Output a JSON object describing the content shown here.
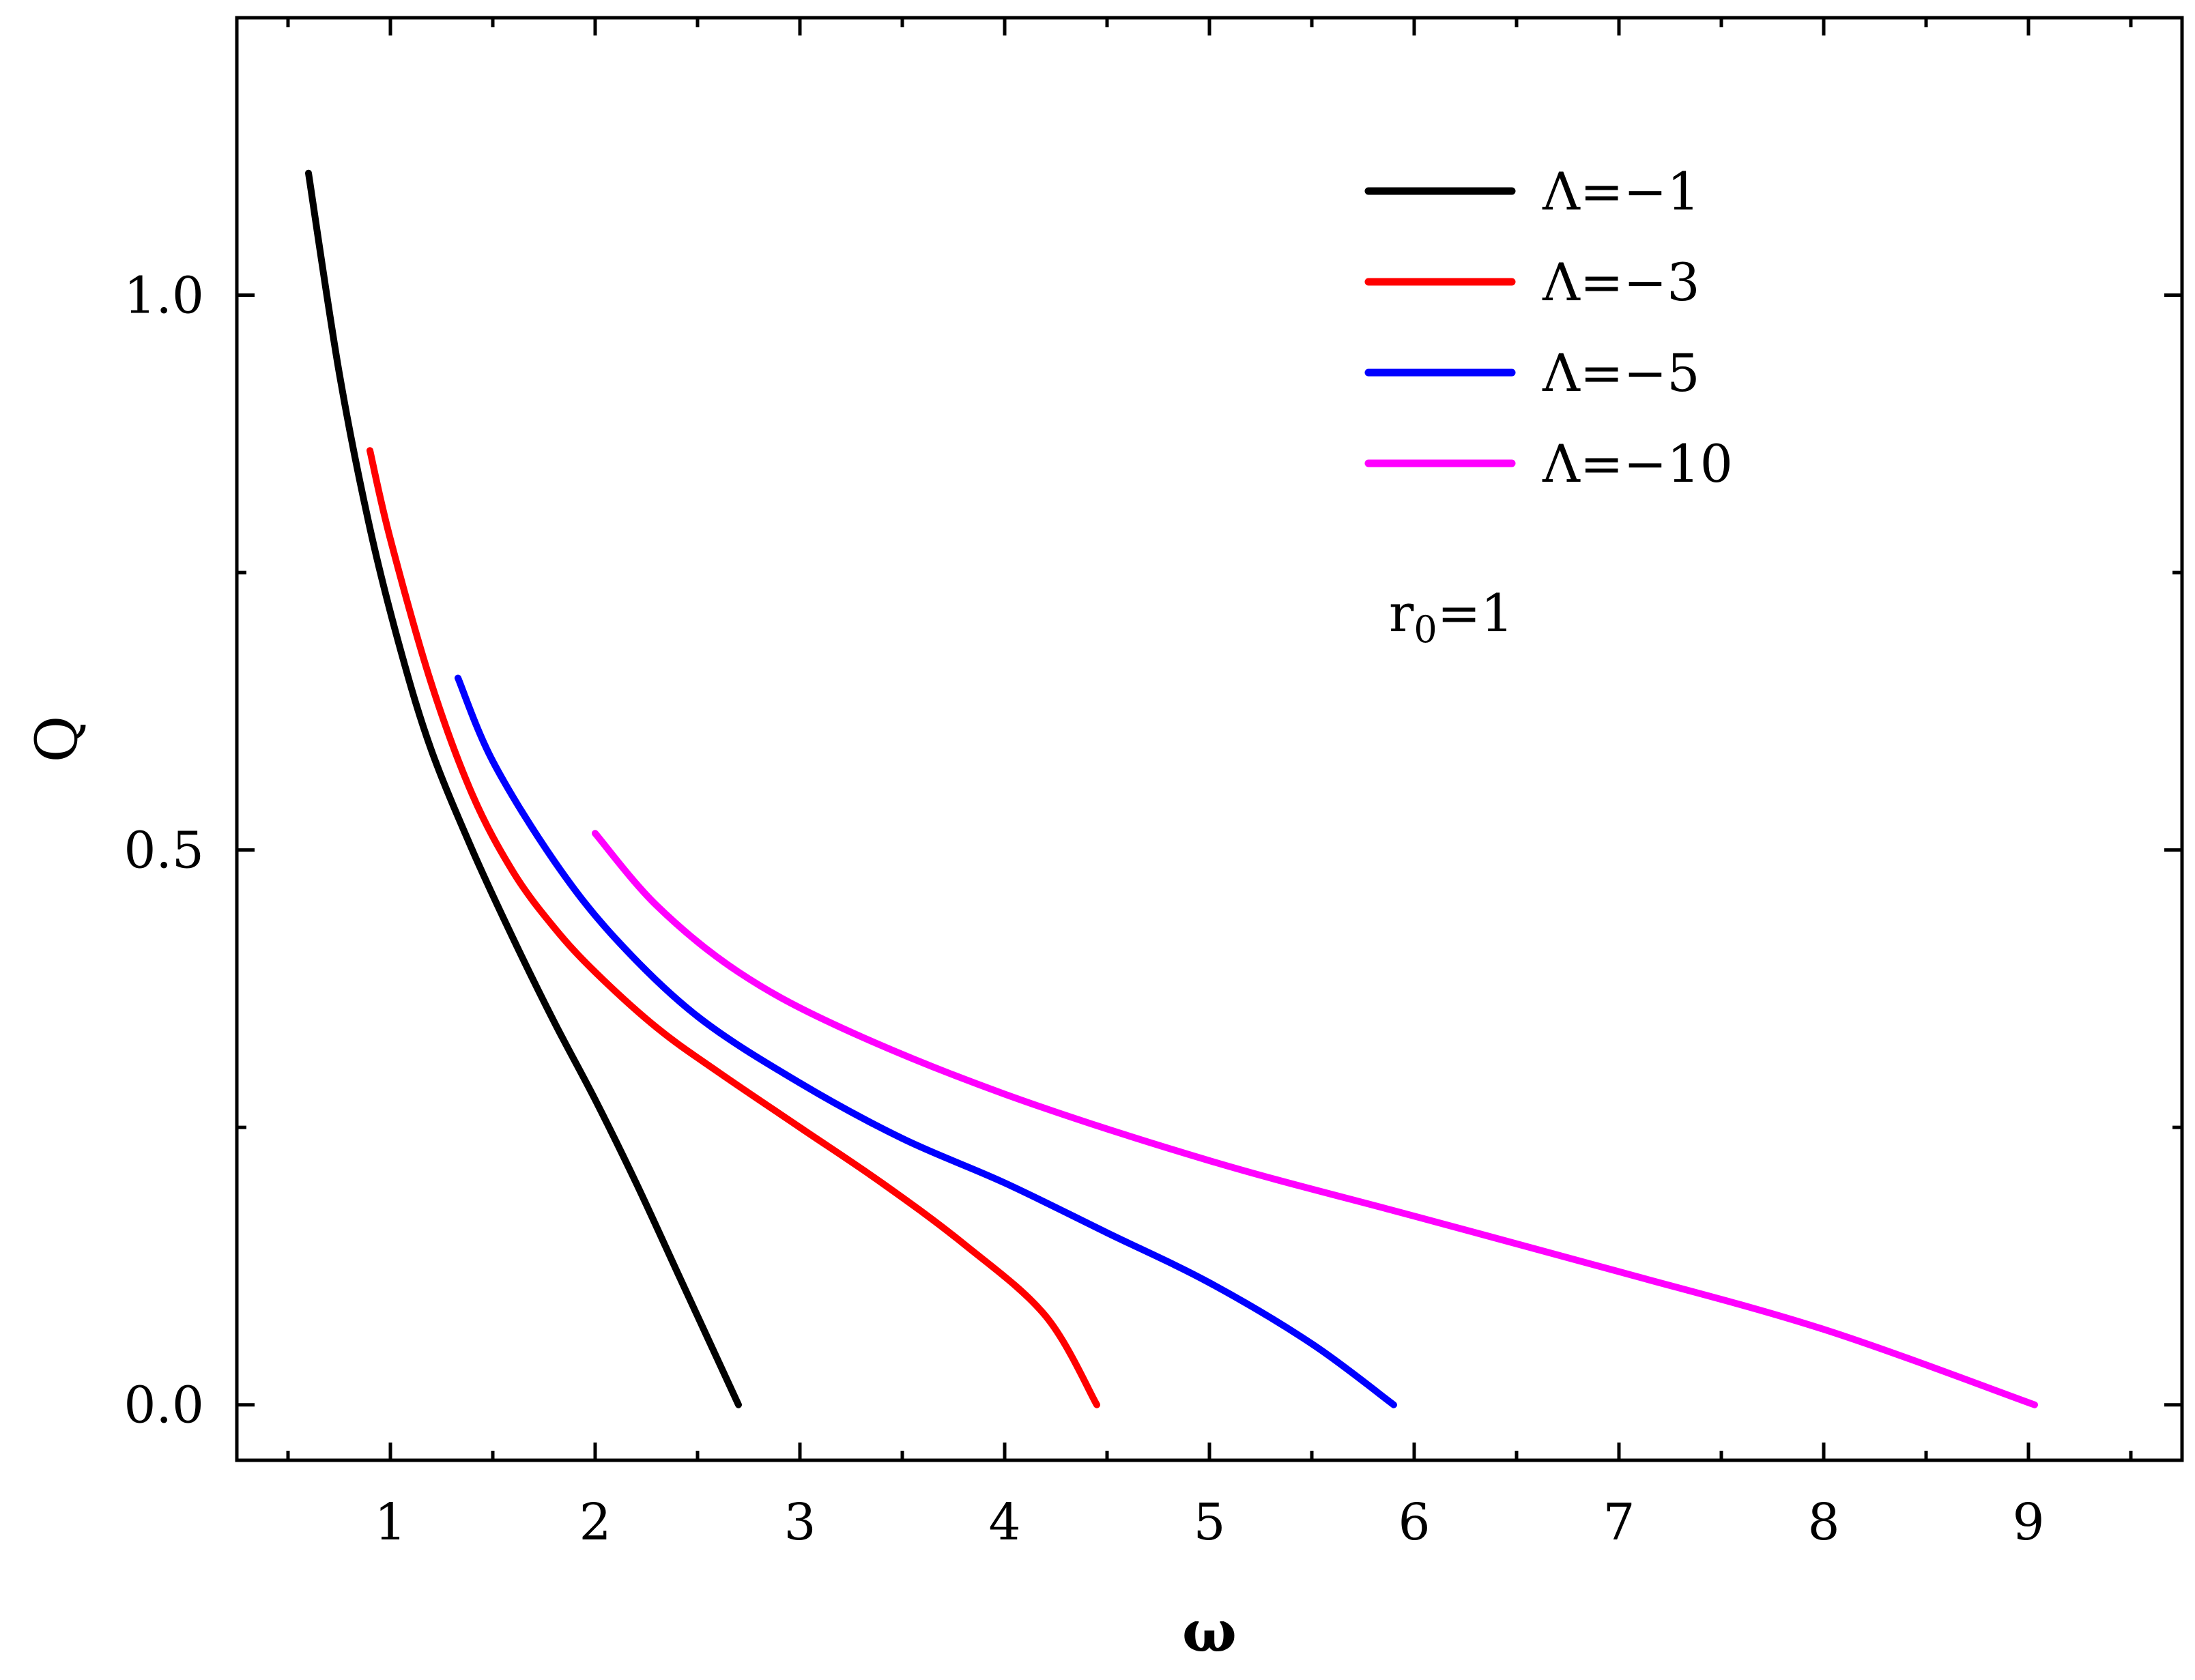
{
  "chart_data": {
    "type": "line",
    "title": "",
    "xlabel": "ω",
    "ylabel": "Q",
    "xlim": [
      0.25,
      9.75
    ],
    "ylim": [
      -0.05,
      1.25
    ],
    "x_ticks": [
      1,
      2,
      3,
      4,
      5,
      6,
      7,
      8,
      9
    ],
    "x_tick_labels": [
      "1",
      "2",
      "3",
      "4",
      "5",
      "6",
      "7",
      "8",
      "9"
    ],
    "y_ticks": [
      0.0,
      0.5,
      1.0
    ],
    "y_tick_labels": [
      "0.0",
      "0.5",
      "1.0"
    ],
    "grid": false,
    "legend_position": "top-right",
    "annotation": {
      "main": "r",
      "subscript": "0",
      "suffix": "=1"
    },
    "series": [
      {
        "name": "Λ=−1",
        "color": "#000000",
        "points": [
          [
            0.6,
            1.11
          ],
          [
            0.75,
            0.93
          ],
          [
            0.9,
            0.79
          ],
          [
            1.05,
            0.68
          ],
          [
            1.2,
            0.59
          ],
          [
            1.4,
            0.5
          ],
          [
            1.6,
            0.42
          ],
          [
            1.8,
            0.345
          ],
          [
            2.0,
            0.275
          ],
          [
            2.2,
            0.2
          ],
          [
            2.4,
            0.12
          ],
          [
            2.55,
            0.06
          ],
          [
            2.7,
            0.0
          ]
        ]
      },
      {
        "name": "Λ=−3",
        "color": "#ff0000",
        "points": [
          [
            0.9,
            0.86
          ],
          [
            1.0,
            0.78
          ],
          [
            1.2,
            0.65
          ],
          [
            1.4,
            0.55
          ],
          [
            1.6,
            0.48
          ],
          [
            1.8,
            0.43
          ],
          [
            2.0,
            0.39
          ],
          [
            2.3,
            0.34
          ],
          [
            2.6,
            0.3
          ],
          [
            3.0,
            0.25
          ],
          [
            3.4,
            0.2
          ],
          [
            3.8,
            0.145
          ],
          [
            4.2,
            0.08
          ],
          [
            4.45,
            0.0
          ]
        ]
      },
      {
        "name": "Λ=−5",
        "color": "#0000ff",
        "points": [
          [
            1.33,
            0.655
          ],
          [
            1.5,
            0.58
          ],
          [
            1.8,
            0.49
          ],
          [
            2.1,
            0.42
          ],
          [
            2.5,
            0.35
          ],
          [
            3.0,
            0.29
          ],
          [
            3.5,
            0.24
          ],
          [
            4.0,
            0.2
          ],
          [
            4.5,
            0.155
          ],
          [
            5.0,
            0.11
          ],
          [
            5.5,
            0.055
          ],
          [
            5.9,
            0.0
          ]
        ]
      },
      {
        "name": "Λ=−10",
        "color": "#ff00ff",
        "points": [
          [
            2.0,
            0.515
          ],
          [
            2.3,
            0.45
          ],
          [
            2.7,
            0.39
          ],
          [
            3.2,
            0.34
          ],
          [
            4.0,
            0.28
          ],
          [
            5.0,
            0.22
          ],
          [
            6.0,
            0.17
          ],
          [
            7.0,
            0.12
          ],
          [
            8.0,
            0.068
          ],
          [
            9.03,
            0.0
          ]
        ]
      }
    ]
  }
}
